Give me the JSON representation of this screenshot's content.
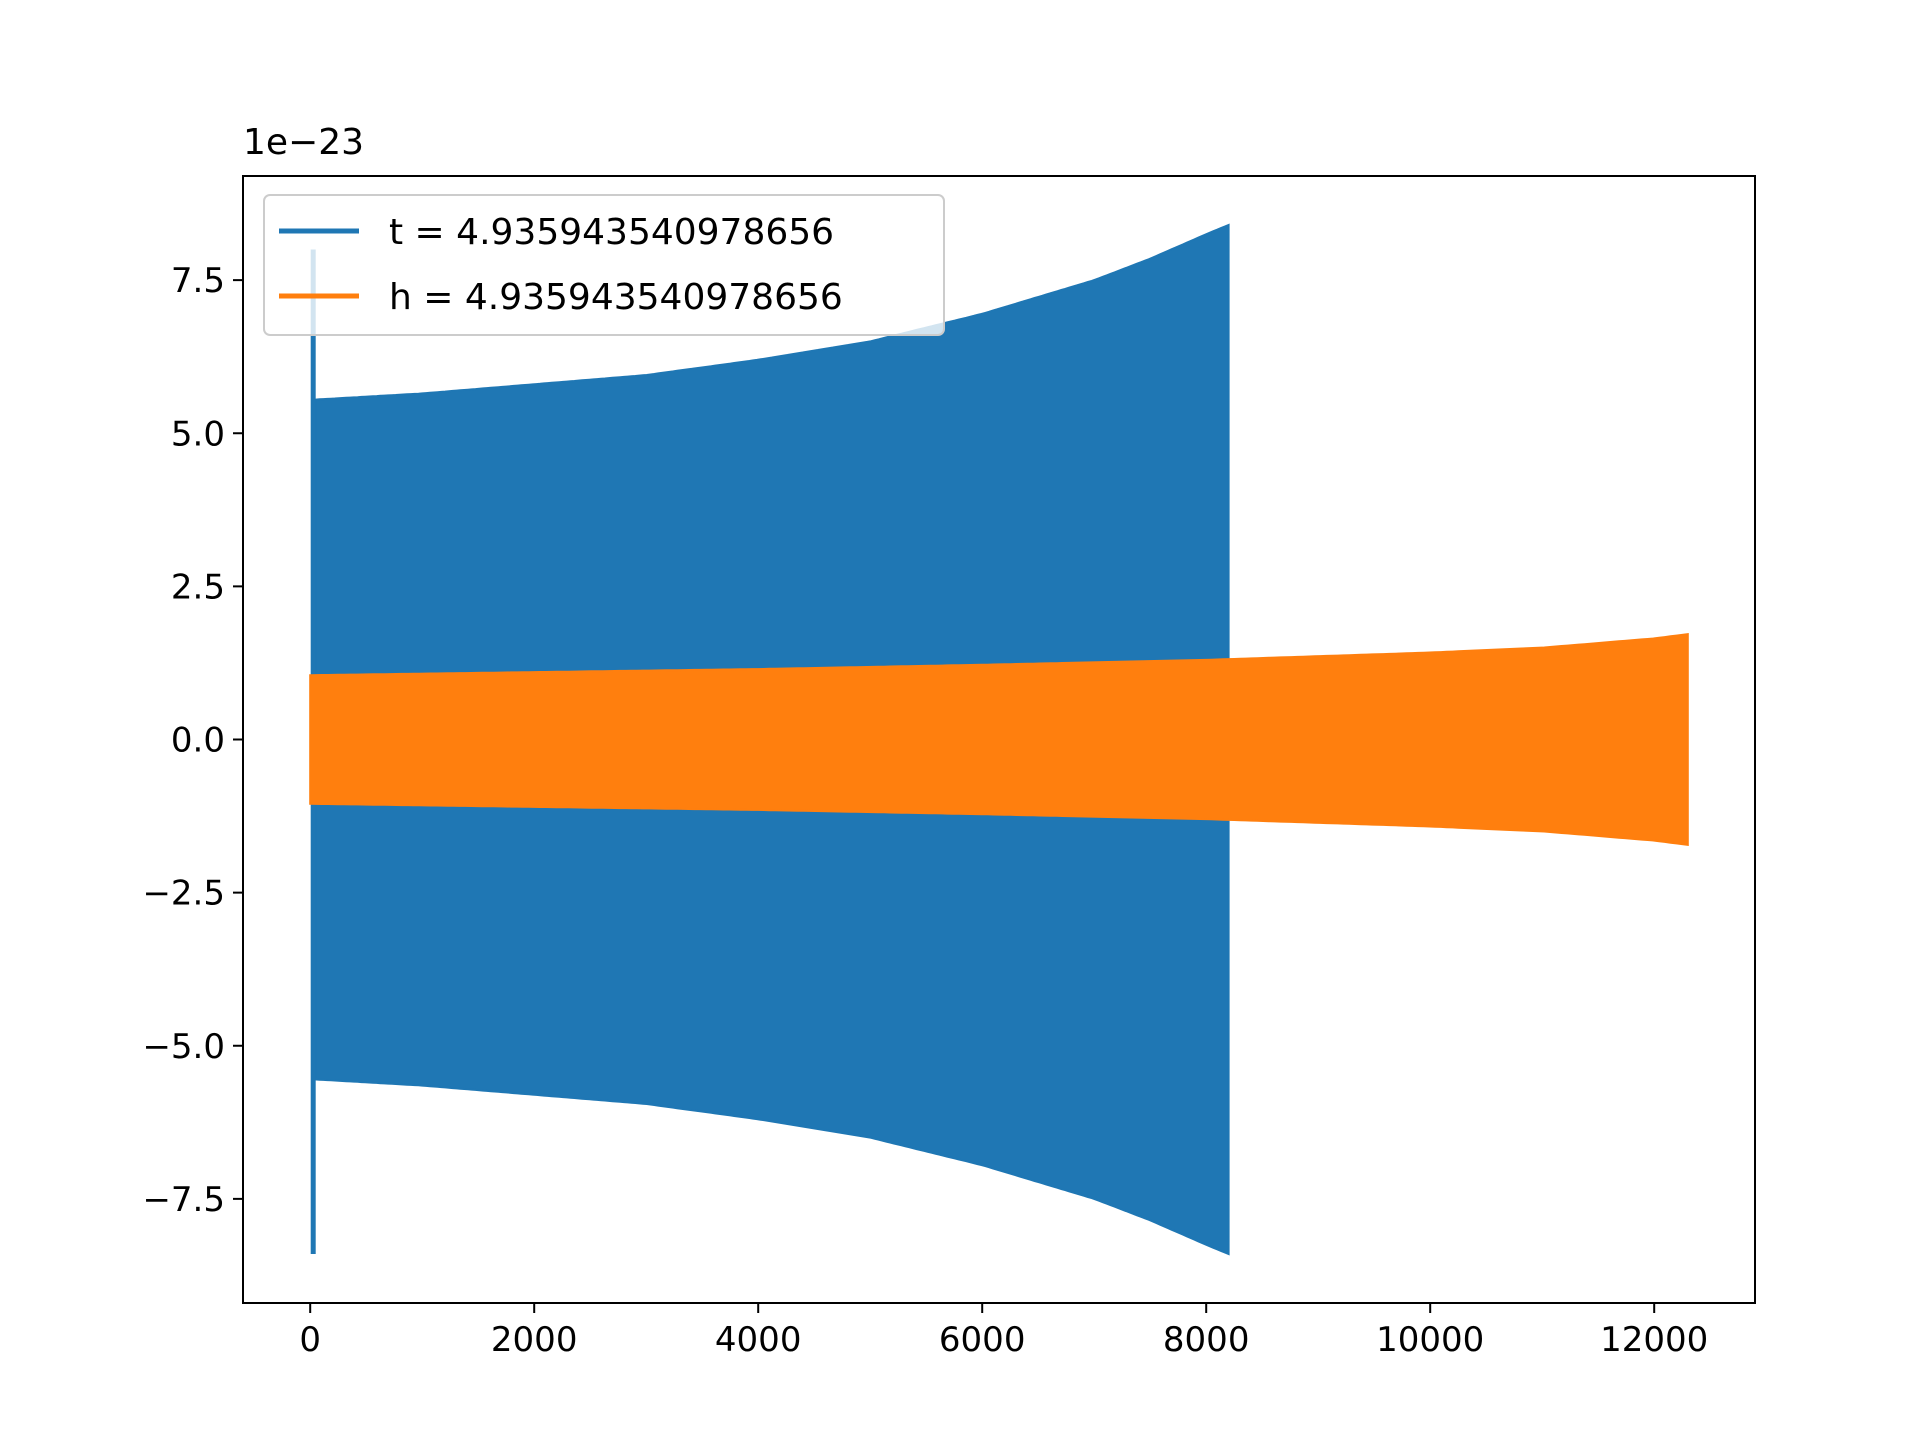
{
  "chart_data": {
    "type": "line",
    "title": "",
    "xlabel": "",
    "ylabel": "",
    "offset_label": "1e−23",
    "xlim": [
      -600,
      12900
    ],
    "ylim": [
      -9.2,
      9.2
    ],
    "x_ticks": [
      0,
      2000,
      4000,
      6000,
      8000,
      10000,
      12000
    ],
    "x_tick_labels": [
      "0",
      "2000",
      "4000",
      "6000",
      "8000",
      "10000",
      "12000"
    ],
    "y_ticks": [
      7.5,
      5.0,
      2.5,
      0.0,
      -2.5,
      -5.0,
      -7.5
    ],
    "y_tick_labels": [
      "7.5",
      "5.0",
      "2.5",
      "0.0",
      "−2.5",
      "−5.0",
      "−7.5"
    ],
    "grid": false,
    "legend_position": "top-left",
    "series": [
      {
        "name": "t = 4.935943540978656",
        "color": "#1f77b4",
        "kind": "oscillating-envelope",
        "spike": {
          "x": 0,
          "y_max": 8.0,
          "y_min": -8.4
        },
        "envelope_x": [
          50,
          1000,
          2000,
          3000,
          4000,
          5000,
          6000,
          7000,
          7500,
          8000,
          8200
        ],
        "envelope_upper": [
          5.55,
          5.65,
          5.8,
          5.95,
          6.2,
          6.5,
          6.95,
          7.5,
          7.85,
          8.25,
          8.4
        ],
        "envelope_lower": [
          -5.55,
          -5.65,
          -5.8,
          -5.95,
          -6.2,
          -6.5,
          -6.95,
          -7.5,
          -7.85,
          -8.25,
          -8.4
        ]
      },
      {
        "name": "h = 4.935943540978656",
        "color": "#ff7f0e",
        "kind": "oscillating-envelope",
        "envelope_x": [
          0,
          2000,
          4000,
          6000,
          8000,
          10000,
          11000,
          12000,
          12300
        ],
        "envelope_upper": [
          1.05,
          1.1,
          1.15,
          1.22,
          1.3,
          1.42,
          1.5,
          1.65,
          1.72
        ],
        "envelope_lower": [
          -1.05,
          -1.1,
          -1.15,
          -1.22,
          -1.3,
          -1.42,
          -1.5,
          -1.65,
          -1.72
        ]
      }
    ]
  }
}
